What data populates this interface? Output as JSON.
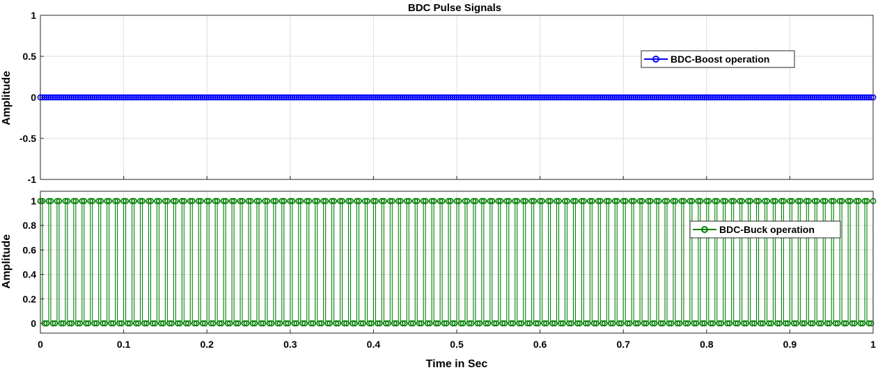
{
  "chart_data": [
    {
      "type": "stem",
      "title": "BDC Pulse Signals",
      "xlabel": "",
      "ylabel": "Amplitude",
      "xlim": [
        0,
        1
      ],
      "ylim": [
        -1,
        1
      ],
      "xticks": [
        "0",
        "0.1",
        "0.2",
        "0.3",
        "0.4",
        "0.5",
        "0.6",
        "0.7",
        "0.8",
        "0.9",
        "1"
      ],
      "yticks": [
        "-1",
        "-0.5",
        "0",
        "0.5",
        "1"
      ],
      "grid": true,
      "legend_position": "top-right",
      "series": [
        {
          "name": "BDC-Boost operation",
          "color": "#0000ff",
          "marker": "circle",
          "sample_period": 0.0025,
          "pattern": [
            0
          ],
          "x_range": [
            0,
            1
          ]
        }
      ]
    },
    {
      "type": "stem",
      "title": "",
      "xlabel": "Time in Sec",
      "ylabel": "Amplitude",
      "xlim": [
        0,
        1
      ],
      "ylim": [
        -0.08,
        1.08
      ],
      "xticks": [
        "0",
        "0.1",
        "0.2",
        "0.3",
        "0.4",
        "0.5",
        "0.6",
        "0.7",
        "0.8",
        "0.9",
        "1"
      ],
      "yticks": [
        "0",
        "0.2",
        "0.4",
        "0.6",
        "0.8",
        "1"
      ],
      "grid": true,
      "legend_position": "top-right",
      "series": [
        {
          "name": "BDC-Buck operation",
          "color": "#007f00",
          "marker": "circle",
          "sample_period": 0.0025,
          "pattern": [
            1,
            1,
            0,
            0
          ],
          "x_range": [
            0,
            1
          ]
        }
      ]
    }
  ]
}
